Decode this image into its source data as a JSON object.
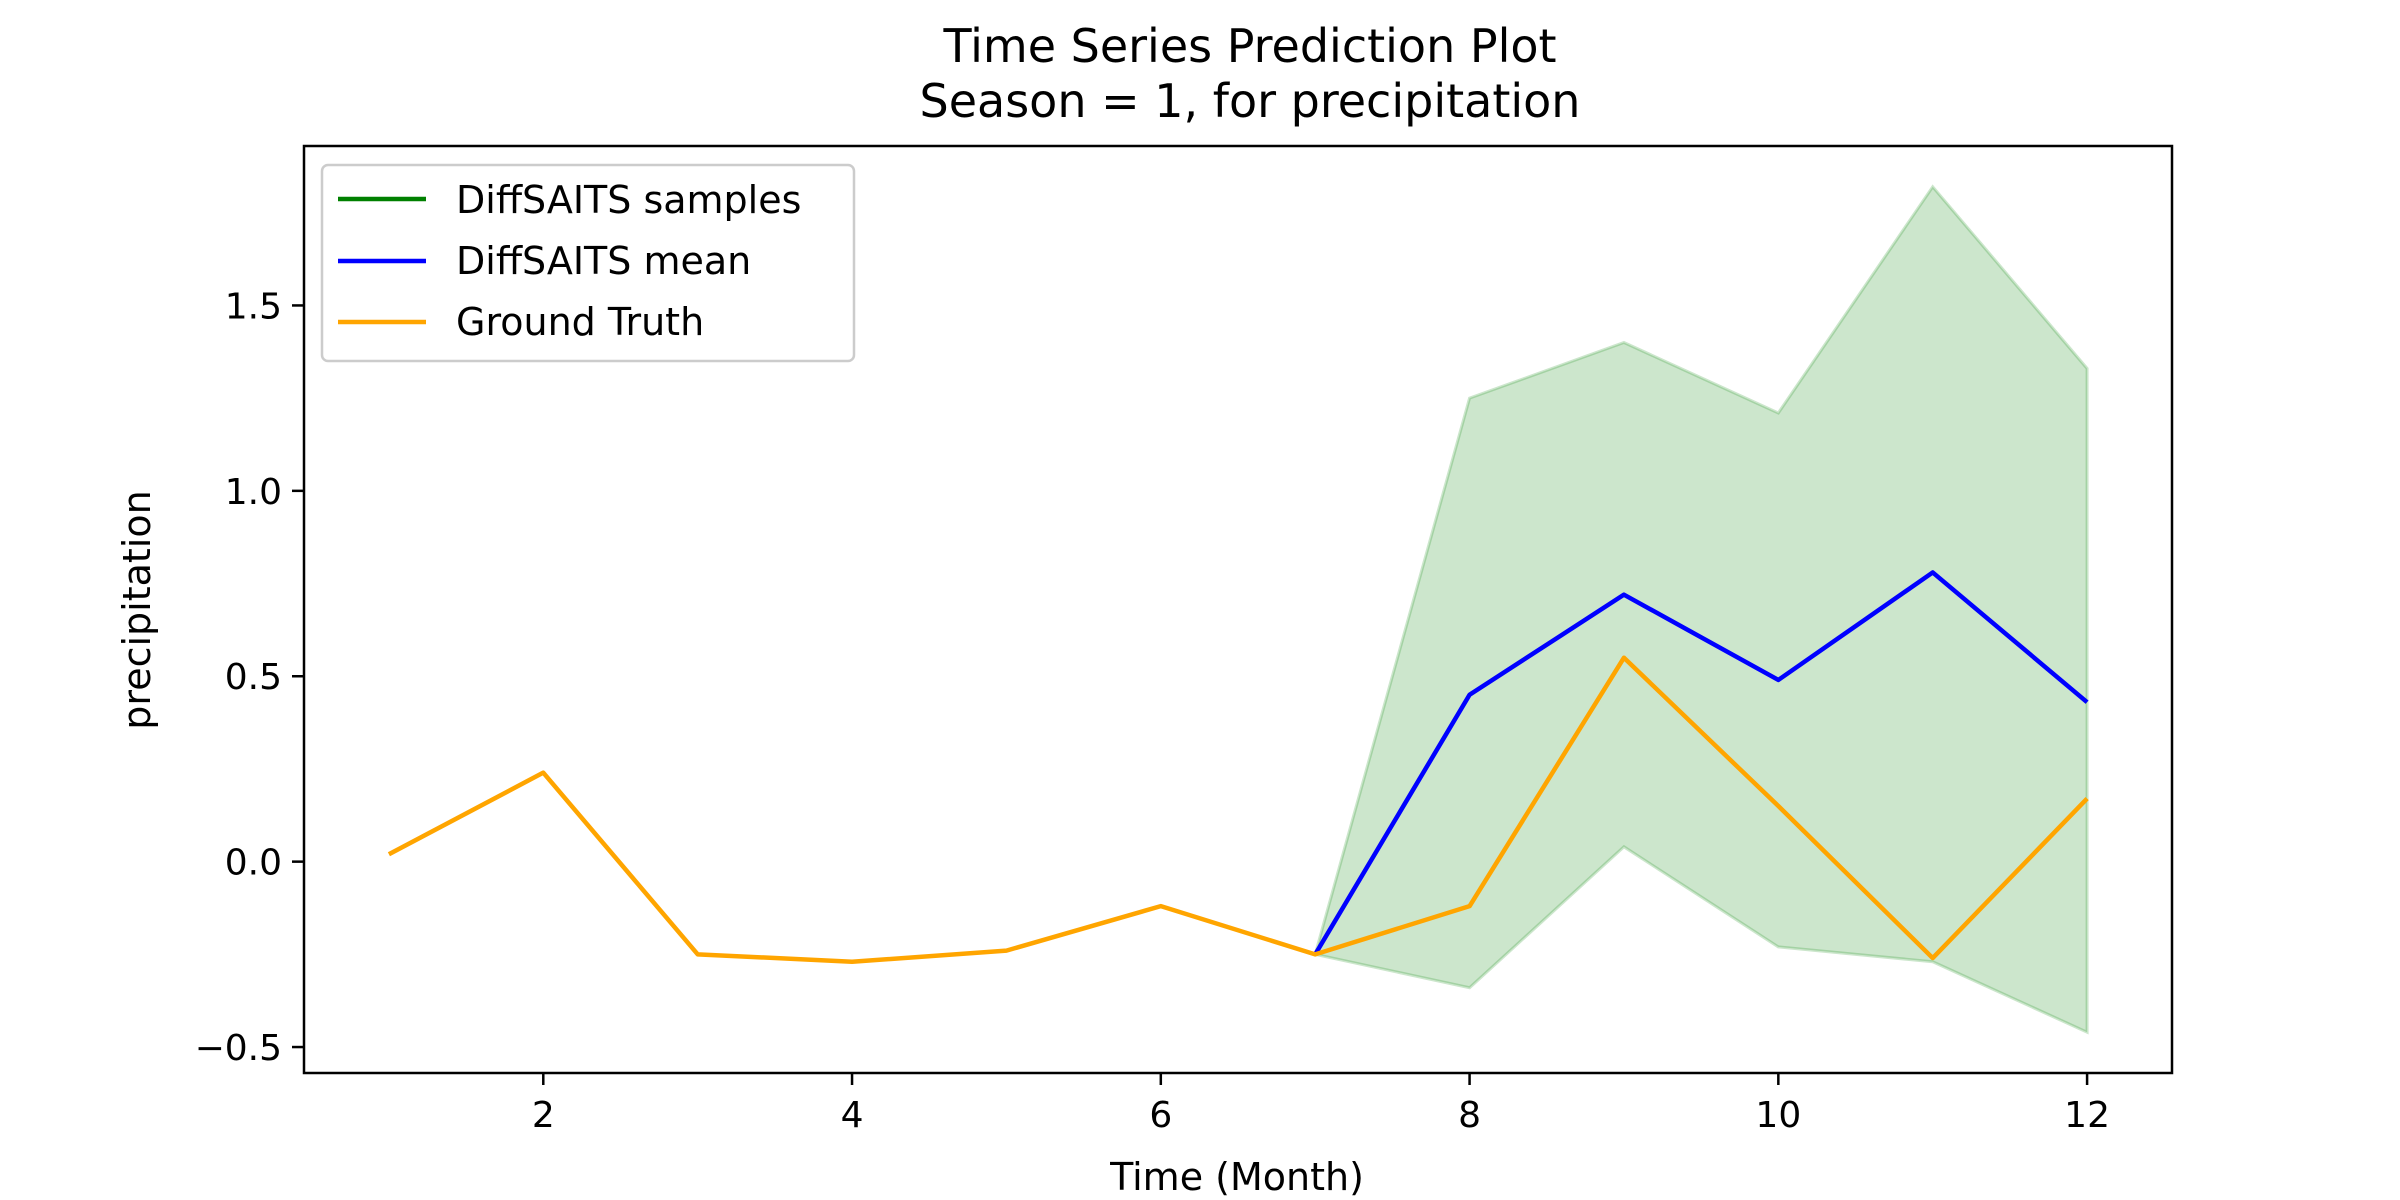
{
  "chart_data": {
    "type": "line",
    "title": "Time Series Prediction Plot",
    "subtitle": "Season = 1, for precipitation",
    "xlabel": "Time (Month)",
    "ylabel": "precipitation",
    "xlim": [
      0.45,
      12.55
    ],
    "ylim": [
      -0.57,
      1.93
    ],
    "xticks": [
      2,
      4,
      6,
      8,
      10,
      12
    ],
    "xtick_labels": [
      "2",
      "4",
      "6",
      "8",
      "10",
      "12"
    ],
    "yticks": [
      -0.5,
      0.0,
      0.5,
      1.0,
      1.5
    ],
    "ytick_labels": [
      "−0.5",
      "0.0",
      "0.5",
      "1.0",
      "1.5"
    ],
    "grid": false,
    "legend_position": "top-left",
    "series": [
      {
        "name": "DiffSAITS samples",
        "kind": "band",
        "color": "#008000",
        "x": [
          7,
          8,
          9,
          10,
          11,
          12
        ],
        "lower": [
          -0.25,
          -0.34,
          0.04,
          -0.23,
          -0.27,
          -0.46
        ],
        "upper": [
          -0.25,
          1.25,
          1.4,
          1.21,
          1.82,
          1.33
        ]
      },
      {
        "name": "DiffSAITS mean",
        "kind": "line",
        "color": "#0000ff",
        "x": [
          7,
          8,
          9,
          10,
          11,
          12
        ],
        "values": [
          -0.25,
          0.45,
          0.72,
          0.49,
          0.78,
          0.43
        ]
      },
      {
        "name": "Ground Truth",
        "kind": "line",
        "color": "#ffa500",
        "x": [
          1,
          2,
          3,
          4,
          5,
          6,
          7,
          8,
          9,
          10,
          11,
          12
        ],
        "values": [
          0.02,
          0.24,
          -0.25,
          -0.27,
          -0.24,
          -0.12,
          -0.25,
          -0.12,
          0.55,
          0.15,
          -0.26,
          0.17
        ]
      }
    ]
  }
}
